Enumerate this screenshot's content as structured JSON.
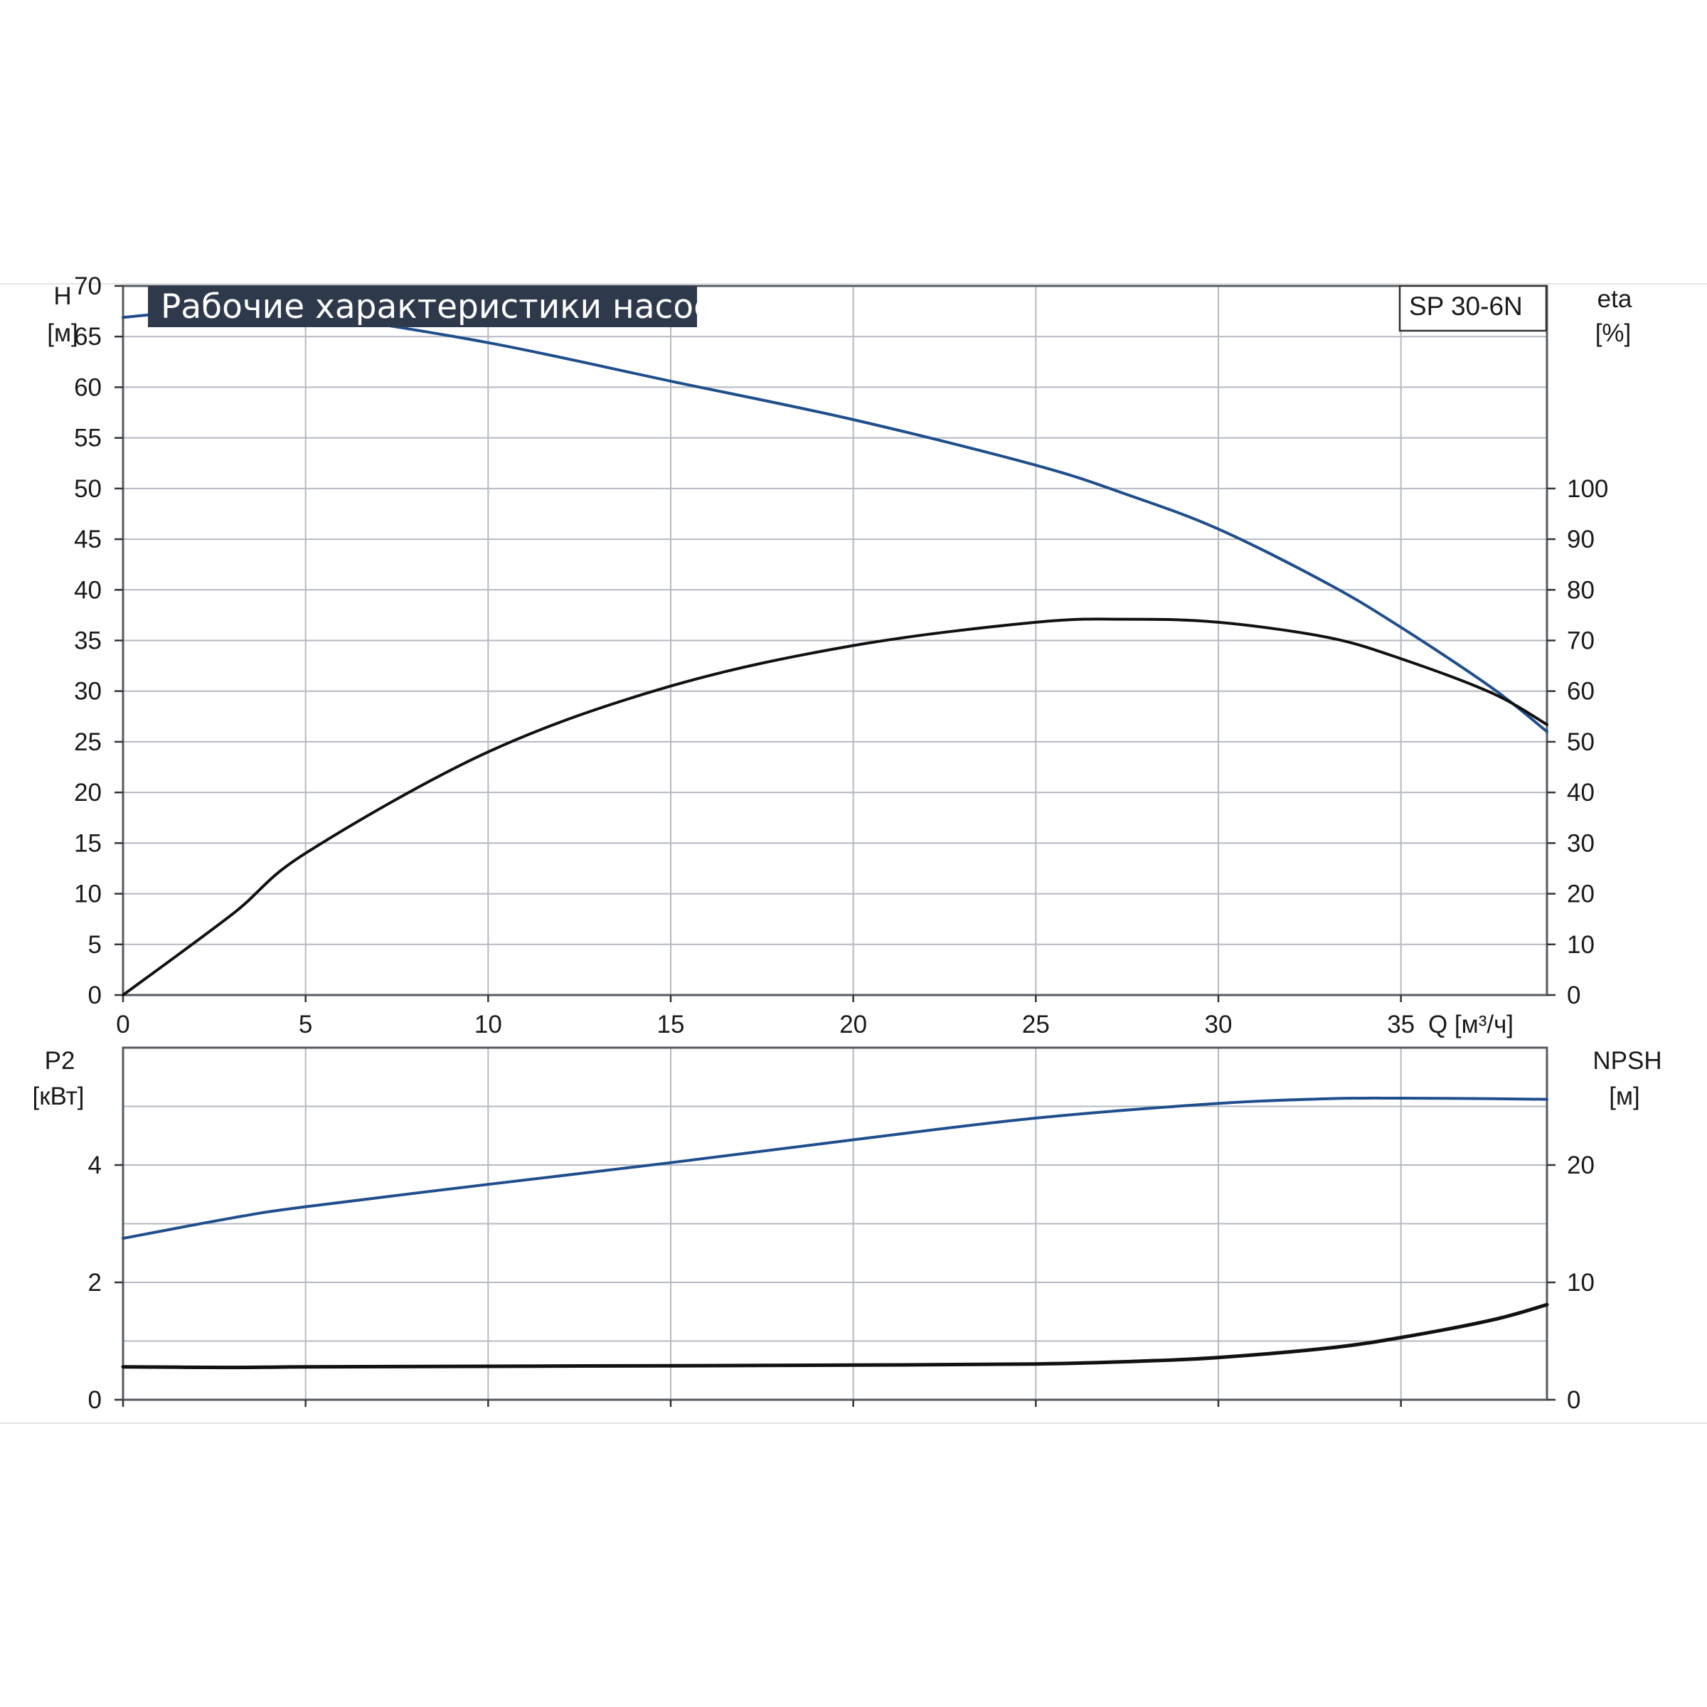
{
  "title": "Рабочие характеристики насоса",
  "model": "SP 30-6N",
  "colors": {
    "blue_curve": "#1f4e8c",
    "black_curve": "#111111",
    "title_bg": "#2e3a4c",
    "grid": "#b5b9c2"
  },
  "chart_data": [
    {
      "type": "line",
      "panel": "top",
      "xlabel": "Q [м³/ч]",
      "xlim": [
        0,
        39
      ],
      "x_ticks": [
        "0",
        "5",
        "10",
        "15",
        "20",
        "25",
        "30",
        "35"
      ],
      "y_left": {
        "label": "H",
        "unit": "[м]",
        "lim": [
          0,
          70
        ],
        "ticks": [
          "0",
          "5",
          "10",
          "15",
          "20",
          "25",
          "30",
          "35",
          "40",
          "45",
          "50",
          "55",
          "60",
          "65",
          "70"
        ]
      },
      "y_right": {
        "label": "eta",
        "unit": "[%]",
        "lim": [
          0,
          140
        ],
        "ticks": [
          "0",
          "10",
          "20",
          "30",
          "40",
          "50",
          "60",
          "70",
          "80",
          "90",
          "100"
        ]
      },
      "grid": true,
      "series": [
        {
          "axis": "left",
          "color": "#1f4e8c",
          "x": [
            0,
            3,
            5,
            10,
            15,
            20,
            25,
            27.5,
            30,
            33,
            35,
            37.5,
            39
          ],
          "y": [
            66.9,
            67.8,
            67.3,
            64.4,
            60.6,
            56.8,
            52.3,
            49.4,
            46.0,
            40.6,
            36.3,
            30.3,
            26.0
          ]
        },
        {
          "axis": "right",
          "color": "#111111",
          "x": [
            0,
            3,
            5,
            10,
            15,
            20,
            25,
            27.5,
            30,
            33,
            35,
            37.5,
            39
          ],
          "y": [
            0,
            16,
            28,
            48,
            61,
            69,
            73.6,
            74.2,
            73.6,
            70.6,
            66.4,
            59.6,
            53.4
          ]
        }
      ]
    },
    {
      "type": "line",
      "panel": "bottom",
      "xlim": [
        0,
        39
      ],
      "y_left": {
        "label": "P2",
        "unit": "[кВт]",
        "lim": [
          0,
          6
        ],
        "ticks": [
          "0",
          "2",
          "4"
        ]
      },
      "y_right": {
        "label": "NPSH",
        "unit": "[м]",
        "lim": [
          0,
          30
        ],
        "ticks": [
          "0",
          "10",
          "20"
        ]
      },
      "grid": true,
      "series": [
        {
          "axis": "left",
          "color": "#1f4e8c",
          "x": [
            0,
            3,
            5,
            10,
            15,
            20,
            25,
            30,
            33,
            35,
            37.5,
            39
          ],
          "y": [
            2.75,
            3.1,
            3.29,
            3.67,
            4.04,
            4.43,
            4.8,
            5.05,
            5.13,
            5.14,
            5.13,
            5.12
          ]
        },
        {
          "axis": "right",
          "color": "#111111",
          "x": [
            0,
            3,
            5,
            10,
            15,
            20,
            25,
            28,
            30,
            33,
            35,
            37.5,
            39
          ],
          "y": [
            2.8,
            2.75,
            2.8,
            2.85,
            2.9,
            2.95,
            3.05,
            3.3,
            3.6,
            4.4,
            5.3,
            6.8,
            8.1
          ]
        }
      ]
    }
  ]
}
